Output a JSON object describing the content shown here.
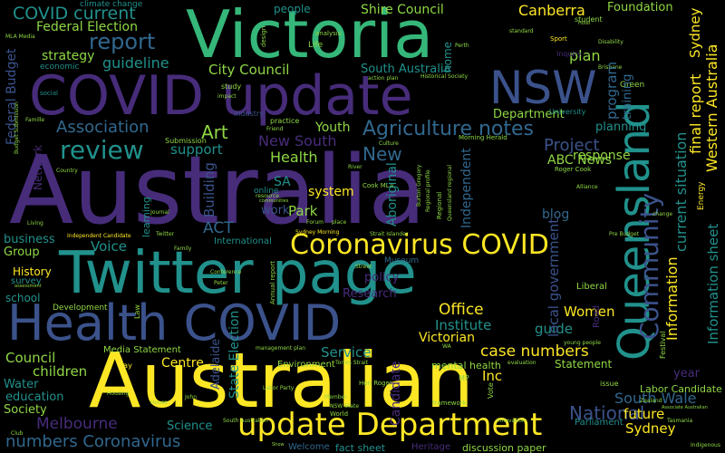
{
  "palette": {
    "background": "#000000",
    "dark_purple": "#472c7a",
    "indigo": "#3b528b",
    "slate": "#31688e",
    "teal": "#21918c",
    "green": "#35b779",
    "lime": "#8fd744",
    "yellow": "#fde725"
  },
  "words": {
    "australia": "Australia",
    "australian": "Australian",
    "victoria": "Victoria",
    "covid_update": "COVID update",
    "twitter_page": "Twitter page",
    "health_covid": "Health COVID",
    "queensland": "Queensland",
    "nsw": "NSW",
    "coronavirus_covid": "Coronavirus COVID",
    "update_department": "update Department",
    "community": "Community",
    "covid_current": "COVID current",
    "federal_election": "Federal Election",
    "report": "report",
    "guideline": "guideline",
    "city_council": "City Council",
    "review": "review",
    "association": "Association",
    "agriculture_notes": "Agriculture notes",
    "canberra": "Canberra",
    "foundation": "Foundation",
    "shire_council": "Shire Council",
    "people": "people",
    "south_australia": "South Australia",
    "sydney": "Sydney",
    "current_situation": "current situation",
    "final_report": "final report",
    "western_australia": "Western Australia",
    "information": "Information",
    "information_sheet": "Information sheet",
    "art": "Art",
    "health": "Health",
    "new_south": "New South",
    "new": "New",
    "project": "Project",
    "abc_news": "ABC News",
    "plan": "plan",
    "planning": "planning",
    "program": "program",
    "training": "training",
    "department": "Department",
    "youth": "Youth",
    "support": "support",
    "building": "Building",
    "act": "ACT",
    "voice": "Voice",
    "system": "system",
    "park": "Park",
    "work": "work",
    "sa": "SA",
    "aboriginal": "Aboriginal",
    "independent": "Independent",
    "blog": "blog",
    "response": "response",
    "women": "Women",
    "office": "Office",
    "guide": "guide",
    "institute": "Institute",
    "victorian": "Victorian",
    "case_numbers": "case numbers",
    "research": "Research",
    "policy": "policy",
    "local_government": "local government",
    "service": "Service",
    "council": "Council",
    "children": "children",
    "centre": "Centre",
    "adelaide": "Adelaide",
    "state_election": "State Election",
    "water": "Water",
    "education": "education",
    "society": "Society",
    "melbourne": "Melbourne",
    "numbers_coronavirus": "numbers Coronavirus",
    "science": "Science",
    "national": "National",
    "south_wale": "South Wale",
    "future": "future",
    "inc": "Inc",
    "year": "year",
    "labor_candidate": "Labor Candidate",
    "statement": "Statement",
    "candidate": "Candidate",
    "history": "History",
    "school": "school",
    "survey": "survey",
    "business": "business",
    "group": "Group",
    "strategy": "strategy",
    "federal_budget": "Federal Budget",
    "network": "Network",
    "international": "International",
    "development": "Development",
    "environment": "Environment",
    "museum": "Museum",
    "mental_health": "mental health",
    "fact_sheet": "fact sheet",
    "discussion_paper": "discussion paper",
    "heritage": "Heritage",
    "welcome": "Welcome",
    "parliament": "Parliament",
    "media_statement": "Media Statement",
    "liberal": "Liberal",
    "road": "Road",
    "life": "Life",
    "home": "home",
    "analysis": "analysis",
    "practice": "practice",
    "industry": "Industry",
    "university": "University",
    "green": "Green",
    "sport": "Sport",
    "student": "student",
    "climate_change": "climate change",
    "economic": "economic",
    "social": "social",
    "study": "study",
    "submission": "Submission",
    "learning": "learning",
    "online": "online",
    "issue": "issue",
    "management_plan": "management plan",
    "torres_strait": "Torres Strait",
    "mla_media": "MLA Media",
    "cook_mla": "Cook MLA",
    "roger_cook": "Roger Cook",
    "hon_roger": "Hon Roger",
    "morning_herald": "Morning Herald",
    "alliance": "Alliance",
    "energy": "Energy",
    "inquiry": "Inquiry",
    "zealand": "Zealand",
    "family": "Family",
    "twitter": "Twitter",
    "country": "Country",
    "framework": "framework",
    "labor_party": "Labor Party",
    "indigenous": "Indigenous",
    "pre_budget": "Pre Budget",
    "disability": "Disability",
    "brisbane": "Brisbane",
    "tasmania": "Tasmania",
    "vote": "Vote",
    "day": "Day",
    "festival": "Festival",
    "young_people": "young people",
    "evaluation": "evaluation",
    "conference": "Conference",
    "journal": "Journal",
    "innovation": "Innovation",
    "housing": "Housing",
    "member": "Member",
    "world": "World",
    "change": "change",
    "resource": "resource",
    "communities": "communities",
    "forum": "Forum",
    "place": "place",
    "living": "Living",
    "regional": "Regional",
    "perth": "Perth",
    "standard": "standard",
    "club": "Club",
    "show": "Show",
    "house": "House",
    "john": "John",
    "street": "Street",
    "river": "River",
    "culture": "Culture",
    "design": "design",
    "friend": "Friend",
    "peter": "Peter",
    "nsw_state": "NSW State",
    "wa": "WA",
    "law": "Law",
    "impact": "impact",
    "action_plan": "action plan",
    "historical_society": "Historical Society",
    "independent_candidate": "Independent Candidate",
    "annual_report": "Annual report",
    "sydney_morning": "Sydney Morning",
    "strait_islander": "Strait Islander",
    "budget_submission": "Budget Submission",
    "assessment": "assessment",
    "hotel": "Hotel",
    "burton_gregory": "Burton Gregory",
    "regional_profile": "Regional profile",
    "queensland_regional": "Queensland regional",
    "associate_australian": "Associate Australian",
    "mp": "MP",
    "south_australian": "South Australian",
    "famille": "Famille"
  }
}
